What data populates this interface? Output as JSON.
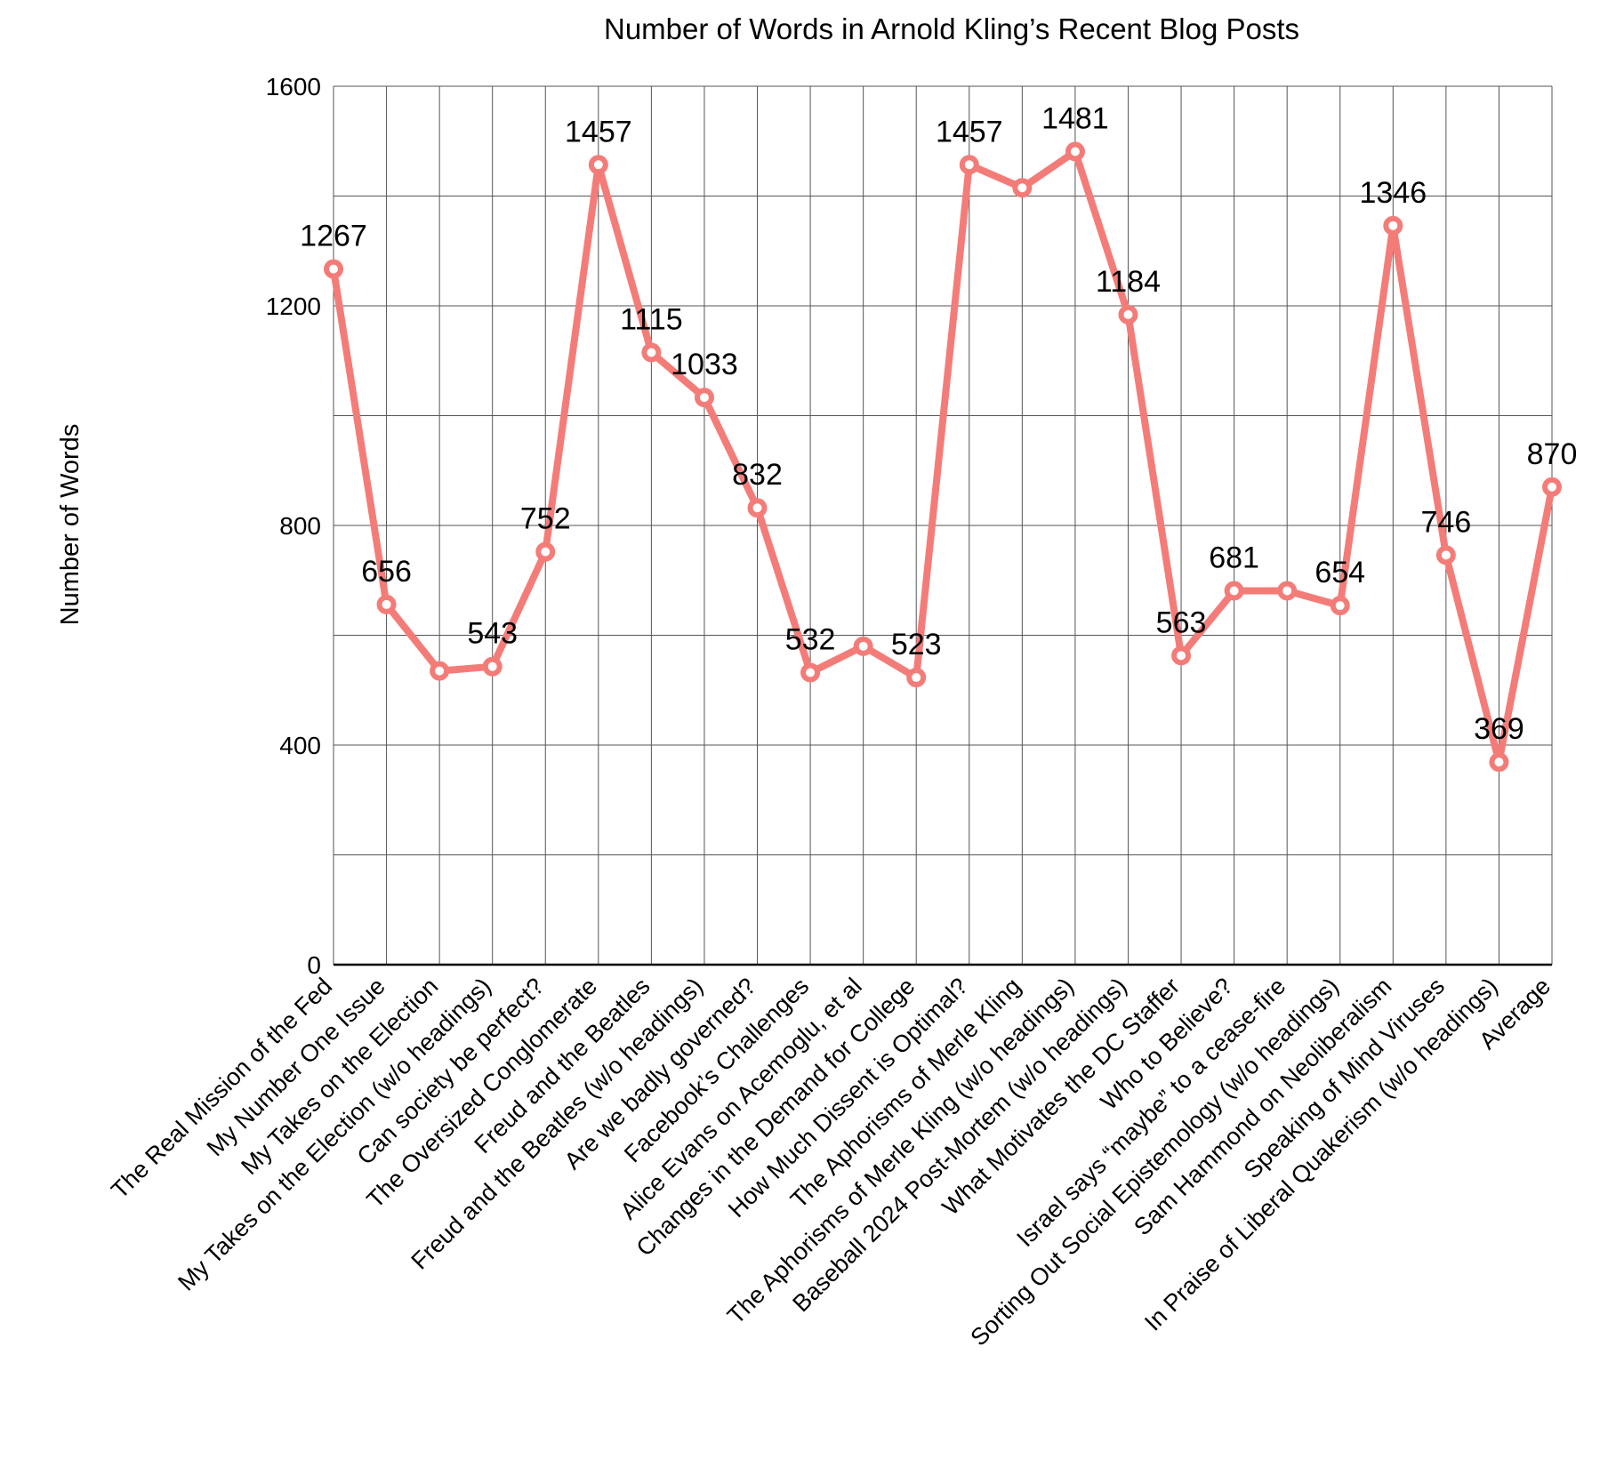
{
  "chart_data": {
    "type": "line",
    "title": "Number of Words in Arnold Kling’s Recent Blog Posts",
    "xlabel": "",
    "ylabel": "Number of Words",
    "ylim": [
      0,
      1600
    ],
    "yticks": [
      "0",
      "400",
      "800",
      "1200",
      "1600"
    ],
    "grid": true,
    "legend": "none",
    "line_color": "#f47c78",
    "categories": [
      "The Real Mission of the Fed",
      "My Number One Issue",
      "My Takes on the Election",
      "My Takes on the Election (w/o headings)",
      "Can society be perfect?",
      "The Oversized Conglomerate",
      "Freud and the Beatles",
      "Freud and the Beatles (w/o headings)",
      "Are we badly governed?",
      "Facebook’s Challenges",
      "Alice Evans on Acemoglu, et al",
      "Changes in the Demand for College",
      "How Much Dissent is Optimal?",
      "The Aphorisms of Merle Kling",
      "The Aphorisms of Merle Kling (w/o headings)",
      "Baseball 2024 Post-Mortem (w/o headings)",
      "What Motivates the DC Staffer",
      "Who to Believe?",
      "Israel says “maybe” to a cease-fire",
      "Sorting Out Social Epistemology (w/o headings)",
      "Sam Hammond on Neoliberalism",
      "Speaking of Mind Viruses",
      "In Praise of Liberal Quakerism (w/o headings)",
      "Average"
    ],
    "series": [
      {
        "values": [
          1267,
          656,
          535,
          543,
          752,
          1457,
          1115,
          1033,
          832,
          532,
          580,
          523,
          1457,
          1415,
          1481,
          1184,
          563,
          681,
          681,
          654,
          1346,
          746,
          369,
          870
        ],
        "labels": [
          "1267",
          "656",
          "",
          "543",
          "752",
          "1457",
          "1115",
          "1033",
          "832",
          "532",
          "",
          "523",
          "1457",
          "",
          "1481",
          "1184",
          "563",
          "681",
          "",
          "654",
          "1346",
          "746",
          "369",
          "870"
        ]
      }
    ]
  }
}
